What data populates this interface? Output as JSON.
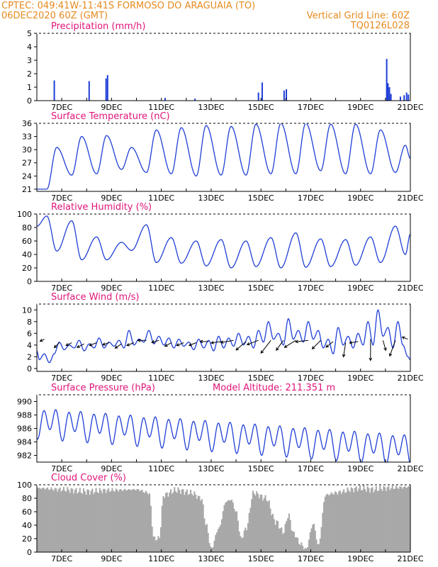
{
  "header": {
    "line1": "CPTEC:   049:41W-11:41S   FORMOSO DO ARAGUAIA (TO)",
    "line2_left": "06DEC2020 60Z (GMT)",
    "line2_right": "Vertical Grid Line: 60Z",
    "line3_right": "TQ0126L028"
  },
  "colors": {
    "header": "#e58a1f",
    "title": "#e0157a",
    "series": "#1f3fd6",
    "cloud": "#a8a8a8",
    "frame": "#000000"
  },
  "x_axis": {
    "labels": [
      "7DEC",
      "9DEC",
      "11DEC",
      "13DEC",
      "15DEC",
      "17DEC",
      "19DEC",
      "21DEC"
    ],
    "range_days": [
      6.0,
      21.0
    ],
    "label_days": [
      7,
      9,
      11,
      13,
      15,
      17,
      19,
      21
    ]
  },
  "chart_data": [
    {
      "id": "precip",
      "type": "bar",
      "title": "Precipitation (mm/h)",
      "ylim": [
        0,
        5
      ],
      "yticks": [
        0,
        1,
        2,
        3,
        4,
        5
      ],
      "spikes": [
        {
          "t": 6.7,
          "v": 1.5
        },
        {
          "t": 8.1,
          "v": 1.45
        },
        {
          "t": 8.78,
          "v": 1.65
        },
        {
          "t": 8.84,
          "v": 1.9
        },
        {
          "t": 11.15,
          "v": 0.2
        },
        {
          "t": 12.35,
          "v": 0.15
        },
        {
          "t": 14.9,
          "v": 0.6
        },
        {
          "t": 15.05,
          "v": 1.35
        },
        {
          "t": 15.93,
          "v": 0.75
        },
        {
          "t": 16.02,
          "v": 0.85
        },
        {
          "t": 20.05,
          "v": 3.1
        },
        {
          "t": 20.1,
          "v": 1.3
        },
        {
          "t": 20.16,
          "v": 1.0
        },
        {
          "t": 20.22,
          "v": 0.5
        },
        {
          "t": 20.6,
          "v": 0.3
        },
        {
          "t": 20.75,
          "v": 0.4
        },
        {
          "t": 20.85,
          "v": 0.6
        },
        {
          "t": 20.92,
          "v": 0.45
        }
      ]
    },
    {
      "id": "temp",
      "type": "line",
      "title": "Surface Temperature (nC)",
      "ylim": [
        20.5,
        36
      ],
      "yticks": [
        21,
        24,
        27,
        30,
        33,
        36
      ],
      "mins": [
        {
          "t": 6.4,
          "v": 21.0
        },
        {
          "t": 7.4,
          "v": 24.2
        },
        {
          "t": 8.4,
          "v": 24.5
        },
        {
          "t": 9.4,
          "v": 25.5
        },
        {
          "t": 10.4,
          "v": 24.8
        },
        {
          "t": 11.4,
          "v": 24.5
        },
        {
          "t": 12.4,
          "v": 24.0
        },
        {
          "t": 13.4,
          "v": 24.2
        },
        {
          "t": 14.4,
          "v": 24.2
        },
        {
          "t": 15.4,
          "v": 24.5
        },
        {
          "t": 16.4,
          "v": 24.5
        },
        {
          "t": 17.4,
          "v": 25.2
        },
        {
          "t": 18.4,
          "v": 24.5
        },
        {
          "t": 19.4,
          "v": 24.5
        },
        {
          "t": 20.4,
          "v": 24.8
        }
      ],
      "maxs": [
        {
          "t": 6.8,
          "v": 30.5
        },
        {
          "t": 7.8,
          "v": 33.0
        },
        {
          "t": 8.8,
          "v": 33.2
        },
        {
          "t": 9.8,
          "v": 30.5
        },
        {
          "t": 10.8,
          "v": 34.5
        },
        {
          "t": 11.8,
          "v": 35.0
        },
        {
          "t": 12.8,
          "v": 35.5
        },
        {
          "t": 13.8,
          "v": 35.3
        },
        {
          "t": 14.8,
          "v": 35.8
        },
        {
          "t": 15.8,
          "v": 36.0
        },
        {
          "t": 16.8,
          "v": 36.0
        },
        {
          "t": 17.8,
          "v": 35.8
        },
        {
          "t": 18.8,
          "v": 35.8
        },
        {
          "t": 19.8,
          "v": 34.5
        },
        {
          "t": 20.8,
          "v": 31.0
        }
      ],
      "end": {
        "t": 21.0,
        "v": 28.0
      }
    },
    {
      "id": "rh",
      "type": "line",
      "title": "Relative Humidity (%)",
      "ylim": [
        0,
        100
      ],
      "yticks": [
        0,
        20,
        40,
        60,
        80,
        100
      ],
      "maxs": [
        {
          "t": 6.4,
          "v": 97
        },
        {
          "t": 7.4,
          "v": 90
        },
        {
          "t": 8.4,
          "v": 66
        },
        {
          "t": 9.4,
          "v": 58
        },
        {
          "t": 10.4,
          "v": 84
        },
        {
          "t": 11.4,
          "v": 65
        },
        {
          "t": 12.4,
          "v": 60
        },
        {
          "t": 13.4,
          "v": 62
        },
        {
          "t": 14.4,
          "v": 60
        },
        {
          "t": 15.4,
          "v": 65
        },
        {
          "t": 16.4,
          "v": 72
        },
        {
          "t": 17.4,
          "v": 63
        },
        {
          "t": 18.4,
          "v": 62
        },
        {
          "t": 19.4,
          "v": 66
        },
        {
          "t": 20.4,
          "v": 82
        }
      ],
      "mins": [
        {
          "t": 6.8,
          "v": 45
        },
        {
          "t": 7.8,
          "v": 32
        },
        {
          "t": 8.8,
          "v": 32
        },
        {
          "t": 9.8,
          "v": 46
        },
        {
          "t": 10.8,
          "v": 28
        },
        {
          "t": 11.8,
          "v": 27
        },
        {
          "t": 12.8,
          "v": 23
        },
        {
          "t": 13.8,
          "v": 20
        },
        {
          "t": 14.8,
          "v": 22
        },
        {
          "t": 15.8,
          "v": 20
        },
        {
          "t": 16.8,
          "v": 21
        },
        {
          "t": 17.8,
          "v": 22
        },
        {
          "t": 18.8,
          "v": 24
        },
        {
          "t": 19.8,
          "v": 28
        },
        {
          "t": 20.8,
          "v": 40
        }
      ],
      "start": {
        "t": 6.0,
        "v": 82
      },
      "end": {
        "t": 21.0,
        "v": 70
      }
    },
    {
      "id": "wind",
      "type": "line",
      "title": "Surface Wind (m/s)",
      "ylim": [
        -0.5,
        11
      ],
      "yticks": [
        0,
        2,
        4,
        6,
        8,
        10
      ],
      "speeds": [
        {
          "t": 6.0,
          "v": 3.0
        },
        {
          "t": 6.1,
          "v": 1.5
        },
        {
          "t": 6.3,
          "v": 2.5
        },
        {
          "t": 6.5,
          "v": 1.0
        },
        {
          "t": 6.7,
          "v": 2.5
        },
        {
          "t": 6.9,
          "v": 4.5
        },
        {
          "t": 7.1,
          "v": 3.2
        },
        {
          "t": 7.3,
          "v": 4.0
        },
        {
          "t": 7.5,
          "v": 3.5
        },
        {
          "t": 7.7,
          "v": 4.8
        },
        {
          "t": 7.9,
          "v": 3.0
        },
        {
          "t": 8.1,
          "v": 4.2
        },
        {
          "t": 8.3,
          "v": 3.5
        },
        {
          "t": 8.5,
          "v": 5.2
        },
        {
          "t": 8.7,
          "v": 3.5
        },
        {
          "t": 8.9,
          "v": 4.5
        },
        {
          "t": 9.1,
          "v": 3.8
        },
        {
          "t": 9.3,
          "v": 4.8
        },
        {
          "t": 9.5,
          "v": 3.5
        },
        {
          "t": 9.7,
          "v": 6.5
        },
        {
          "t": 9.9,
          "v": 4.0
        },
        {
          "t": 10.1,
          "v": 5.0
        },
        {
          "t": 10.3,
          "v": 4.5
        },
        {
          "t": 10.5,
          "v": 6.5
        },
        {
          "t": 10.7,
          "v": 4.2
        },
        {
          "t": 10.9,
          "v": 5.5
        },
        {
          "t": 11.1,
          "v": 4.0
        },
        {
          "t": 11.3,
          "v": 5.2
        },
        {
          "t": 11.5,
          "v": 3.5
        },
        {
          "t": 11.7,
          "v": 5.0
        },
        {
          "t": 11.9,
          "v": 3.8
        },
        {
          "t": 12.1,
          "v": 4.5
        },
        {
          "t": 12.3,
          "v": 3.2
        },
        {
          "t": 12.5,
          "v": 5.0
        },
        {
          "t": 12.7,
          "v": 3.5
        },
        {
          "t": 12.9,
          "v": 4.8
        },
        {
          "t": 13.1,
          "v": 3.0
        },
        {
          "t": 13.3,
          "v": 5.5
        },
        {
          "t": 13.5,
          "v": 3.5
        },
        {
          "t": 13.7,
          "v": 5.2
        },
        {
          "t": 13.9,
          "v": 3.8
        },
        {
          "t": 14.1,
          "v": 6.0
        },
        {
          "t": 14.3,
          "v": 4.0
        },
        {
          "t": 14.5,
          "v": 5.5
        },
        {
          "t": 14.7,
          "v": 3.5
        },
        {
          "t": 14.9,
          "v": 6.5
        },
        {
          "t": 15.1,
          "v": 4.5
        },
        {
          "t": 15.3,
          "v": 8.0
        },
        {
          "t": 15.5,
          "v": 5.0
        },
        {
          "t": 15.7,
          "v": 6.0
        },
        {
          "t": 15.9,
          "v": 4.0
        },
        {
          "t": 16.1,
          "v": 8.5
        },
        {
          "t": 16.3,
          "v": 5.0
        },
        {
          "t": 16.5,
          "v": 6.5
        },
        {
          "t": 16.7,
          "v": 4.5
        },
        {
          "t": 16.9,
          "v": 8.0
        },
        {
          "t": 17.1,
          "v": 5.0
        },
        {
          "t": 17.3,
          "v": 6.5
        },
        {
          "t": 17.5,
          "v": 3.5
        },
        {
          "t": 17.7,
          "v": 5.0
        },
        {
          "t": 17.9,
          "v": 2.5
        },
        {
          "t": 18.1,
          "v": 7.0
        },
        {
          "t": 18.3,
          "v": 4.0
        },
        {
          "t": 18.5,
          "v": 5.5
        },
        {
          "t": 18.7,
          "v": 3.5
        },
        {
          "t": 18.9,
          "v": 6.0
        },
        {
          "t": 19.1,
          "v": 4.0
        },
        {
          "t": 19.3,
          "v": 8.0
        },
        {
          "t": 19.5,
          "v": 4.0
        },
        {
          "t": 19.7,
          "v": 10.0
        },
        {
          "t": 19.9,
          "v": 5.5
        },
        {
          "t": 20.1,
          "v": 7.0
        },
        {
          "t": 20.3,
          "v": 3.5
        },
        {
          "t": 20.5,
          "v": 8.0
        },
        {
          "t": 20.7,
          "v": 4.0
        },
        {
          "t": 20.9,
          "v": 2.0
        },
        {
          "t": 21.0,
          "v": 1.5
        }
      ],
      "vectors": [
        {
          "t": 6.3,
          "y": 5.0,
          "dx": -6,
          "dy": 3
        },
        {
          "t": 6.9,
          "y": 4.4,
          "dx": -7,
          "dy": 7
        },
        {
          "t": 7.4,
          "y": 4.4,
          "dx": -8,
          "dy": 4
        },
        {
          "t": 7.9,
          "y": 4.2,
          "dx": -10,
          "dy": 5
        },
        {
          "t": 8.4,
          "y": 4.4,
          "dx": -10,
          "dy": 4
        },
        {
          "t": 8.9,
          "y": 4.4,
          "dx": -9,
          "dy": 3
        },
        {
          "t": 9.4,
          "y": 4.2,
          "dx": -9,
          "dy": 6
        },
        {
          "t": 9.9,
          "y": 4.4,
          "dx": -10,
          "dy": 4
        },
        {
          "t": 10.4,
          "y": 4.8,
          "dx": -12,
          "dy": 0
        },
        {
          "t": 10.9,
          "y": 4.8,
          "dx": -10,
          "dy": 3
        },
        {
          "t": 11.4,
          "y": 4.4,
          "dx": -9,
          "dy": 5
        },
        {
          "t": 11.9,
          "y": 4.4,
          "dx": -10,
          "dy": 4
        },
        {
          "t": 12.4,
          "y": 4.4,
          "dx": -10,
          "dy": 4
        },
        {
          "t": 12.9,
          "y": 4.6,
          "dx": -12,
          "dy": 0
        },
        {
          "t": 13.4,
          "y": 4.6,
          "dx": -14,
          "dy": 2
        },
        {
          "t": 13.9,
          "y": 4.8,
          "dx": -18,
          "dy": 3
        },
        {
          "t": 14.4,
          "y": 4.6,
          "dx": -14,
          "dy": 12
        },
        {
          "t": 14.9,
          "y": 4.8,
          "dx": -16,
          "dy": 6
        },
        {
          "t": 15.4,
          "y": 4.8,
          "dx": -14,
          "dy": 18
        },
        {
          "t": 15.9,
          "y": 4.8,
          "dx": -10,
          "dy": 14
        },
        {
          "t": 16.4,
          "y": 4.8,
          "dx": -16,
          "dy": 10
        },
        {
          "t": 16.9,
          "y": 4.8,
          "dx": -18,
          "dy": 2
        },
        {
          "t": 17.4,
          "y": 4.8,
          "dx": -12,
          "dy": 12
        },
        {
          "t": 17.9,
          "y": 4.6,
          "dx": -10,
          "dy": 8
        },
        {
          "t": 18.4,
          "y": 4.4,
          "dx": -3,
          "dy": 20
        },
        {
          "t": 18.9,
          "y": 4.6,
          "dx": -12,
          "dy": 2
        },
        {
          "t": 19.4,
          "y": 5.0,
          "dx": 0,
          "dy": 30
        },
        {
          "t": 19.9,
          "y": 4.8,
          "dx": 4,
          "dy": 14
        },
        {
          "t": 20.4,
          "y": 4.8,
          "dx": -8,
          "dy": 22
        },
        {
          "t": 20.9,
          "y": 5.0,
          "dx": -8,
          "dy": -3
        }
      ]
    },
    {
      "id": "pressure",
      "type": "line",
      "title": "Surface Pressure (hPa)",
      "annotation": "Model Altitude: 211.351 m",
      "ylim": [
        981,
        991
      ],
      "yticks": [
        982,
        984,
        986,
        988,
        990
      ],
      "base_start": 987.0,
      "base_end": 983.0,
      "amplitude": 2.6
    },
    {
      "id": "cloud",
      "type": "area",
      "title": "Cloud Cover (%)",
      "ylim": [
        0,
        100
      ],
      "yticks": [
        0,
        20,
        40,
        60,
        80,
        100
      ],
      "knots": [
        {
          "t": 6.0,
          "v": 95
        },
        {
          "t": 7.0,
          "v": 93
        },
        {
          "t": 8.0,
          "v": 90
        },
        {
          "t": 9.0,
          "v": 92
        },
        {
          "t": 10.0,
          "v": 93
        },
        {
          "t": 10.5,
          "v": 88
        },
        {
          "t": 10.7,
          "v": 20
        },
        {
          "t": 10.9,
          "v": 20
        },
        {
          "t": 11.1,
          "v": 85
        },
        {
          "t": 11.6,
          "v": 92
        },
        {
          "t": 12.2,
          "v": 88
        },
        {
          "t": 12.6,
          "v": 80
        },
        {
          "t": 12.8,
          "v": 40
        },
        {
          "t": 13.0,
          "v": 5
        },
        {
          "t": 13.3,
          "v": 35
        },
        {
          "t": 13.6,
          "v": 75
        },
        {
          "t": 13.8,
          "v": 78
        },
        {
          "t": 14.0,
          "v": 60
        },
        {
          "t": 14.2,
          "v": 20
        },
        {
          "t": 14.4,
          "v": 35
        },
        {
          "t": 14.7,
          "v": 88
        },
        {
          "t": 15.2,
          "v": 80
        },
        {
          "t": 15.6,
          "v": 45
        },
        {
          "t": 15.9,
          "v": 30
        },
        {
          "t": 16.1,
          "v": 55
        },
        {
          "t": 16.3,
          "v": 28
        },
        {
          "t": 16.6,
          "v": 12
        },
        {
          "t": 16.8,
          "v": 4
        },
        {
          "t": 17.1,
          "v": 42
        },
        {
          "t": 17.3,
          "v": 10
        },
        {
          "t": 17.6,
          "v": 85
        },
        {
          "t": 18.0,
          "v": 88
        },
        {
          "t": 18.3,
          "v": 90
        },
        {
          "t": 18.6,
          "v": 93
        },
        {
          "t": 19.0,
          "v": 95
        },
        {
          "t": 19.5,
          "v": 93
        },
        {
          "t": 20.0,
          "v": 95
        },
        {
          "t": 20.5,
          "v": 96
        },
        {
          "t": 21.0,
          "v": 97
        }
      ]
    }
  ]
}
